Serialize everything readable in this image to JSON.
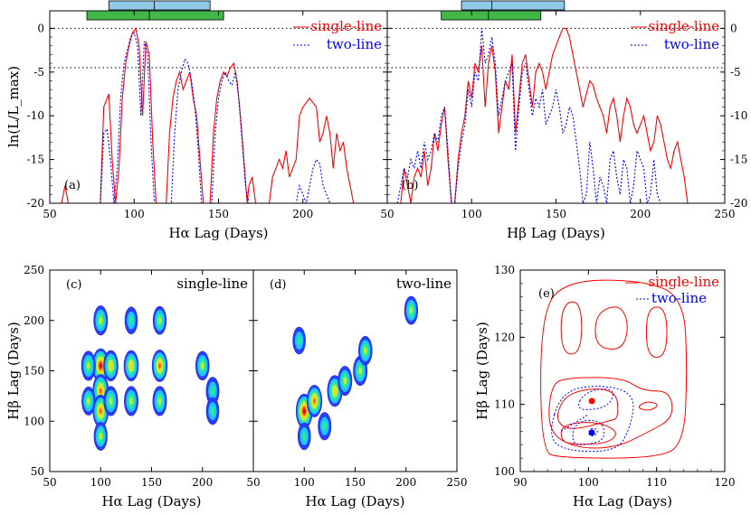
{
  "chart_data": [
    {
      "panel": "a",
      "type": "line",
      "panel_label": "(a)",
      "xlabel": "Hα Lag (Days)",
      "ylabel": "ln(L/L_max)",
      "xlim": [
        50,
        250
      ],
      "ylim": [
        -20,
        2
      ],
      "xticks": [
        "50",
        "100",
        "150",
        "200"
      ],
      "yticks": [
        "0",
        "-5",
        "-10",
        "-15",
        "-20"
      ],
      "reference_lines": [
        0,
        -4.5
      ],
      "legend": [
        "single-line",
        "two-line"
      ],
      "legend_position": "top-right",
      "intervals": [
        {
          "color": "#8ecae6",
          "x0": 85,
          "x1": 145,
          "mid": 112
        },
        {
          "color": "#43b649",
          "x0": 72,
          "x1": 153,
          "mid": 109
        }
      ],
      "series": [
        {
          "name": "single-line",
          "color": "#ff0000",
          "dash": "solid",
          "x": [
            57,
            59,
            60,
            61,
            80,
            82,
            85,
            87,
            89,
            91,
            93,
            95,
            97,
            99,
            101,
            103,
            105,
            107,
            109,
            111,
            113,
            115,
            117,
            119,
            121,
            123,
            125,
            127,
            129,
            131,
            133,
            135,
            137,
            139,
            141,
            143,
            145,
            147,
            149,
            151,
            153,
            155,
            157,
            159,
            161,
            163,
            165,
            167,
            168,
            170,
            172,
            174,
            176,
            178,
            180,
            182,
            184,
            186,
            188,
            190,
            192,
            194,
            196,
            198,
            200,
            202,
            204,
            206,
            208,
            210,
            212,
            214,
            216,
            218,
            220,
            222,
            224,
            226,
            228,
            230,
            232
          ],
          "y": [
            -20,
            -18,
            -19,
            -20,
            -20,
            -9,
            -7.5,
            -15,
            -20,
            -16,
            -8,
            -4,
            -2,
            -0.5,
            0,
            -2,
            -10,
            -1.5,
            -3,
            -13,
            -20,
            -20,
            -20,
            -20,
            -12,
            -8,
            -6,
            -5,
            -7,
            -6,
            -5,
            -8,
            -10,
            -15,
            -20,
            -20,
            -20,
            -12,
            -8,
            -6,
            -5,
            -5.5,
            -4.5,
            -4,
            -6,
            -10,
            -15,
            -20,
            -18,
            -17,
            -20,
            -20,
            -20,
            -20,
            -20,
            -17,
            -16,
            -15,
            -16,
            -14,
            -17,
            -16,
            -15,
            -10,
            -9,
            -8.5,
            -8,
            -8.5,
            -9,
            -13,
            -12,
            -10,
            -12,
            -16,
            -12,
            -14,
            -13,
            -16,
            -18,
            -20,
            -20
          ]
        },
        {
          "name": "two-line",
          "color": "#0000ff",
          "dash": "dotted",
          "x": [
            80,
            82,
            84,
            86,
            88,
            90,
            92,
            94,
            96,
            98,
            100,
            102,
            104,
            106,
            108,
            110,
            112,
            114,
            118,
            122,
            124,
            126,
            128,
            130,
            132,
            134,
            136,
            138,
            140,
            146,
            148,
            150,
            152,
            154,
            156,
            158,
            160,
            162,
            164,
            166,
            168,
            196,
            198,
            200,
            202,
            204,
            206,
            208,
            210,
            212,
            214,
            216,
            218
          ],
          "y": [
            -20,
            -12,
            -11.5,
            -15,
            -20,
            -16,
            -8,
            -4,
            -2.5,
            -1,
            -0.5,
            -2,
            -10,
            -1.5,
            -3,
            -13,
            -20,
            -20,
            -20,
            -20,
            -12,
            -7,
            -5,
            -3.5,
            -4,
            -6,
            -9,
            -14,
            -20,
            -20,
            -12,
            -8,
            -6,
            -5,
            -6,
            -6.5,
            -5,
            -8,
            -13,
            -18,
            -20,
            -20,
            -18,
            -19,
            -20,
            -18,
            -16,
            -15,
            -15.5,
            -18,
            -19,
            -20,
            -20
          ]
        }
      ]
    },
    {
      "panel": "b",
      "type": "line",
      "panel_label": "(b)",
      "xlabel": "Hβ Lag (Days)",
      "ylabel": "",
      "xlim": [
        50,
        250
      ],
      "ylim": [
        -20,
        2
      ],
      "xticks": [
        "50",
        "100",
        "150",
        "200",
        "250"
      ],
      "yticks_right": [
        "0",
        "-5",
        "-10",
        "-15",
        "-20"
      ],
      "reference_lines": [
        0,
        -4.5
      ],
      "legend": [
        "single-line",
        "two-line"
      ],
      "legend_position": "top-right",
      "intervals": [
        {
          "color": "#8ecae6",
          "x0": 94,
          "x1": 155,
          "mid": 112
        },
        {
          "color": "#43b649",
          "x0": 82,
          "x1": 141,
          "mid": 110
        }
      ],
      "series": [
        {
          "name": "single-line",
          "color": "#ff0000",
          "dash": "solid",
          "x": [
            56,
            58,
            60,
            62,
            64,
            66,
            68,
            70,
            72,
            74,
            76,
            78,
            80,
            82,
            84,
            86,
            88,
            90,
            92,
            94,
            96,
            98,
            100,
            102,
            104,
            106,
            108,
            110,
            112,
            114,
            116,
            118,
            120,
            122,
            124,
            126,
            128,
            130,
            132,
            134,
            136,
            138,
            140,
            142,
            144,
            146,
            148,
            150,
            152,
            154,
            156,
            158,
            160,
            162,
            164,
            166,
            168,
            170,
            172,
            174,
            176,
            178,
            180,
            182,
            184,
            186,
            188,
            190,
            192,
            194,
            196,
            198,
            200,
            202,
            204,
            206,
            208,
            210,
            212,
            214,
            216,
            218,
            220,
            222,
            224,
            226,
            228,
            230
          ],
          "y": [
            -20,
            -20,
            -16,
            -18,
            -20,
            -17,
            -16,
            -17,
            -14,
            -18,
            -16,
            -12,
            -14,
            -11,
            -9,
            -15,
            -20,
            -20,
            -15,
            -12,
            -10,
            -6,
            -8,
            -4,
            -5,
            -2,
            -9,
            -4,
            -2,
            -5,
            -12,
            -9,
            -6,
            -7,
            -3,
            -12,
            -8,
            -4,
            -3,
            -6,
            -9,
            -5,
            -4,
            -5,
            -7,
            -5,
            -3,
            -2,
            -1,
            0,
            0,
            -1,
            -3,
            -5,
            -7,
            -9,
            -7.5,
            -6,
            -6.5,
            -8,
            -9,
            -10,
            -12,
            -9,
            -8,
            -10,
            -13,
            -10,
            -8,
            -9,
            -11,
            -12,
            -11,
            -10,
            -12,
            -14,
            -13,
            -10,
            -11,
            -13,
            -15,
            -16,
            -14,
            -13,
            -15,
            -17,
            -20,
            -20
          ]
        },
        {
          "name": "two-line",
          "color": "#0000ff",
          "dash": "dotted",
          "x": [
            56,
            58,
            60,
            62,
            64,
            66,
            68,
            70,
            72,
            74,
            76,
            78,
            80,
            82,
            84,
            86,
            88,
            90,
            92,
            94,
            96,
            98,
            100,
            102,
            104,
            106,
            108,
            110,
            112,
            114,
            116,
            118,
            120,
            122,
            124,
            126,
            128,
            130,
            132,
            134,
            136,
            138,
            140,
            142,
            144,
            146,
            148,
            150,
            152,
            154,
            156,
            158,
            160,
            162,
            164,
            166,
            168,
            170,
            172,
            174,
            176,
            178,
            180,
            182,
            184,
            186,
            188,
            190,
            192,
            194,
            196,
            198,
            200,
            202,
            204,
            206,
            208,
            210,
            212,
            214,
            216,
            218
          ],
          "y": [
            -20,
            -18,
            -16,
            -17,
            -15,
            -16,
            -14,
            -16,
            -13,
            -15,
            -14,
            -12,
            -13,
            -10,
            -9,
            -14,
            -20,
            -20,
            -16,
            -13,
            -11,
            -7,
            -9,
            -5,
            -6,
            0,
            -4,
            -3,
            -1,
            -4,
            -10,
            -8,
            -6,
            -5,
            -4,
            -14,
            -9,
            -5,
            -4,
            -7,
            -10,
            -8,
            -9,
            -7,
            -11,
            -10,
            -9,
            -7,
            -9,
            -12,
            -11,
            -9,
            -10,
            -13,
            -16,
            -20,
            -19,
            -13,
            -16,
            -20,
            -17,
            -18,
            -20,
            -15,
            -14,
            -17,
            -19,
            -15,
            -16,
            -20,
            -18,
            -14,
            -15,
            -16,
            -20,
            -19,
            -15,
            -19,
            -20,
            -20,
            -20,
            -20
          ]
        }
      ]
    },
    {
      "panel": "c",
      "type": "heatmap",
      "panel_label": "(c)",
      "title": "single-line",
      "xlabel": "Hα Lag (Days)",
      "ylabel": "Hβ Lag (Days)",
      "xlim": [
        50,
        250
      ],
      "ylim": [
        50,
        250
      ],
      "xticks": [
        "50",
        "100",
        "150",
        "200"
      ],
      "yticks": [
        "50",
        "100",
        "150",
        "200",
        "250"
      ],
      "blobs": [
        {
          "x": 100,
          "y": 155,
          "value": 1.0
        },
        {
          "x": 100,
          "y": 130,
          "value": 0.9
        },
        {
          "x": 100,
          "y": 110,
          "value": 0.85
        },
        {
          "x": 100,
          "y": 200,
          "value": 0.6
        },
        {
          "x": 88,
          "y": 155,
          "value": 0.6
        },
        {
          "x": 88,
          "y": 120,
          "value": 0.5
        },
        {
          "x": 110,
          "y": 155,
          "value": 0.7
        },
        {
          "x": 110,
          "y": 120,
          "value": 0.6
        },
        {
          "x": 130,
          "y": 155,
          "value": 0.7
        },
        {
          "x": 130,
          "y": 120,
          "value": 0.6
        },
        {
          "x": 130,
          "y": 200,
          "value": 0.4
        },
        {
          "x": 158,
          "y": 155,
          "value": 0.8
        },
        {
          "x": 158,
          "y": 120,
          "value": 0.6
        },
        {
          "x": 158,
          "y": 200,
          "value": 0.5
        },
        {
          "x": 200,
          "y": 155,
          "value": 0.55
        },
        {
          "x": 210,
          "y": 130,
          "value": 0.45
        },
        {
          "x": 210,
          "y": 110,
          "value": 0.4
        },
        {
          "x": 100,
          "y": 85,
          "value": 0.5
        }
      ]
    },
    {
      "panel": "d",
      "type": "heatmap",
      "panel_label": "(d)",
      "title": "two-line",
      "xlabel": "Hα Lag (Days)",
      "ylabel": "",
      "xlim": [
        50,
        250
      ],
      "ylim": [
        50,
        250
      ],
      "xticks": [
        "50",
        "100",
        "150",
        "200",
        "250"
      ],
      "blobs": [
        {
          "x": 100,
          "y": 110,
          "value": 1.0
        },
        {
          "x": 110,
          "y": 120,
          "value": 0.8
        },
        {
          "x": 130,
          "y": 130,
          "value": 0.75
        },
        {
          "x": 140,
          "y": 140,
          "value": 0.6
        },
        {
          "x": 155,
          "y": 150,
          "value": 0.6
        },
        {
          "x": 160,
          "y": 170,
          "value": 0.55
        },
        {
          "x": 120,
          "y": 95,
          "value": 0.45
        },
        {
          "x": 95,
          "y": 180,
          "value": 0.4
        },
        {
          "x": 205,
          "y": 210,
          "value": 0.5
        },
        {
          "x": 100,
          "y": 85,
          "value": 0.4
        }
      ]
    },
    {
      "panel": "e",
      "type": "contour",
      "panel_label": "(e)",
      "xlabel": "Hα Lag (Days)",
      "ylabel": "Hβ Lag (Days)",
      "xlim": [
        90,
        120
      ],
      "ylim": [
        100,
        130
      ],
      "xticks": [
        "90",
        "100",
        "110",
        "120"
      ],
      "yticks": [
        "100",
        "110",
        "120",
        "130"
      ],
      "legend": [
        "single-line",
        "two-line"
      ],
      "legend_position": "top-right",
      "peaks": [
        {
          "name": "single-line",
          "x": 100.5,
          "y": 110.5,
          "color": "#ff0000"
        },
        {
          "name": "two-line",
          "x": 100.5,
          "y": 105.8,
          "color": "#0000ff"
        }
      ]
    }
  ]
}
